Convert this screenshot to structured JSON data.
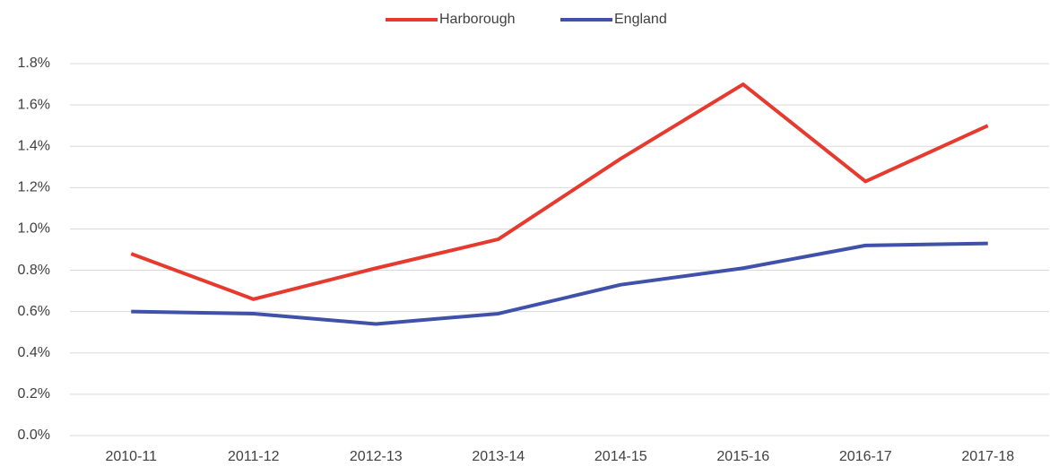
{
  "chart_data": {
    "type": "line",
    "categories": [
      "2010-11",
      "2011-12",
      "2012-13",
      "2013-14",
      "2014-15",
      "2015-16",
      "2016-17",
      "2017-18"
    ],
    "series": [
      {
        "name": "Harborough",
        "color": "#e63a2e",
        "values": [
          0.88,
          0.66,
          0.81,
          0.95,
          1.34,
          1.7,
          1.23,
          1.5
        ]
      },
      {
        "name": "England",
        "color": "#3f51a8",
        "values": [
          0.6,
          0.59,
          0.54,
          0.59,
          0.73,
          0.81,
          0.92,
          0.93
        ]
      }
    ],
    "ylim": [
      0,
      1.8
    ],
    "yticks": [
      {
        "value": 0,
        "label": "0.0%"
      },
      {
        "value": 0.2,
        "label": "0.2%"
      },
      {
        "value": 0.4,
        "label": "0.4%"
      },
      {
        "value": 0.6,
        "label": "0.6%"
      },
      {
        "value": 0.8,
        "label": "0.8%"
      },
      {
        "value": 1.0,
        "label": "1.0%"
      },
      {
        "value": 1.2,
        "label": "1.2%"
      },
      {
        "value": 1.4,
        "label": "1.4%"
      },
      {
        "value": 1.6,
        "label": "1.6%"
      },
      {
        "value": 1.8,
        "label": "1.8%"
      }
    ],
    "grid": true,
    "legend": "top"
  }
}
